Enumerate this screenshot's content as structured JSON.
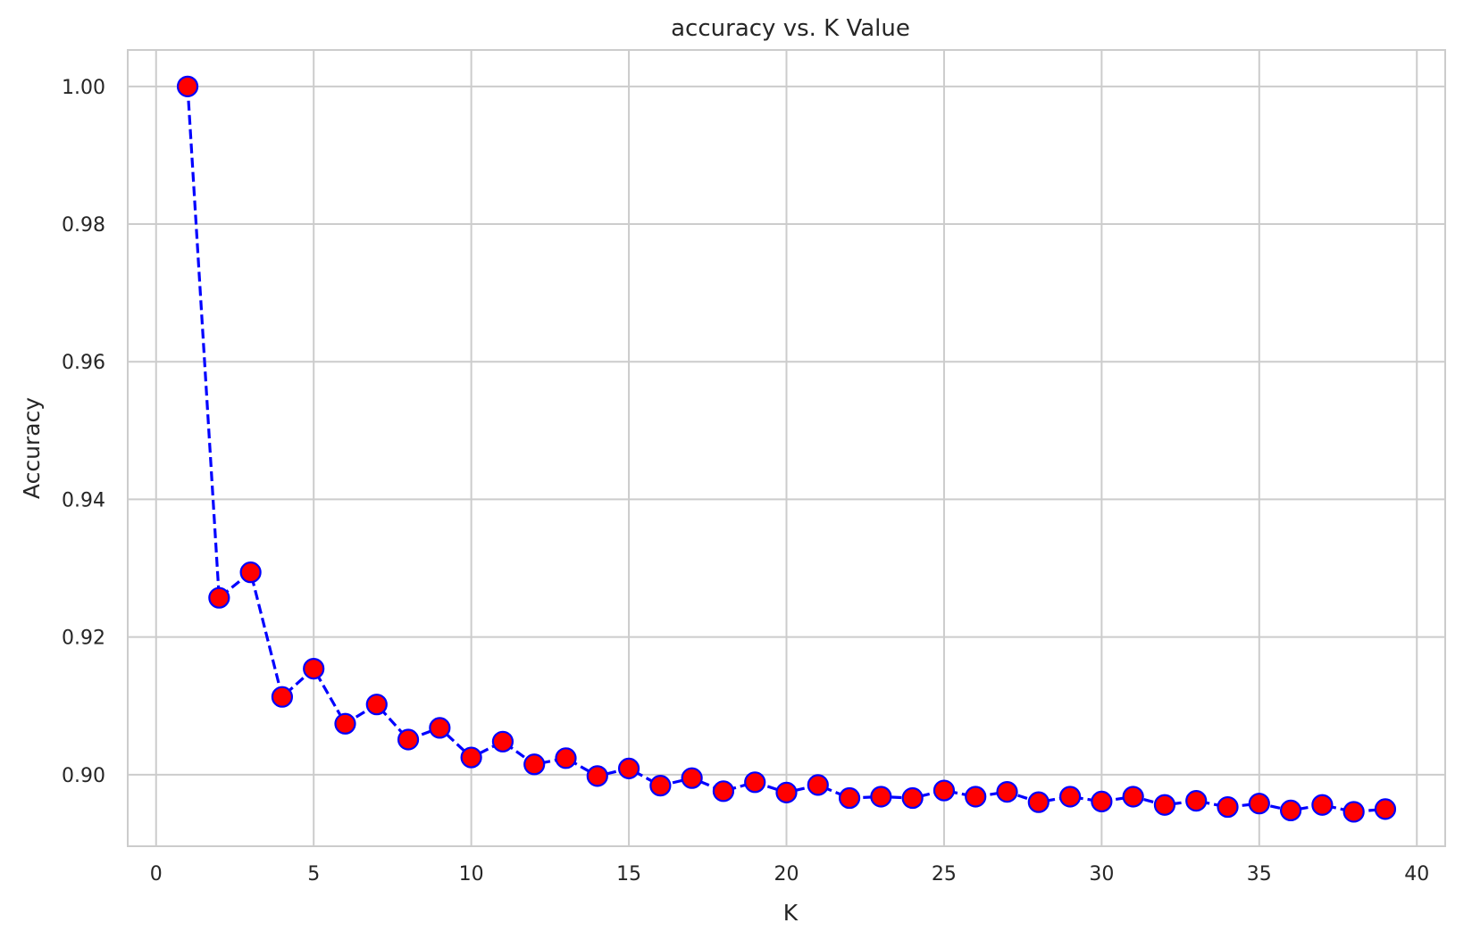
{
  "chart_data": {
    "type": "line",
    "title": "accuracy vs. K Value",
    "xlabel": "K",
    "ylabel": "Accuracy",
    "xlim": [
      -0.9,
      40.9
    ],
    "ylim": [
      0.8896,
      1.0053
    ],
    "xticks": [
      0,
      5,
      10,
      15,
      20,
      25,
      30,
      35,
      40
    ],
    "xtick_labels": [
      "0",
      "5",
      "10",
      "15",
      "20",
      "25",
      "30",
      "35",
      "40"
    ],
    "yticks": [
      0.9,
      0.92,
      0.94,
      0.96,
      0.98,
      1.0
    ],
    "ytick_labels": [
      "0.90",
      "0.92",
      "0.94",
      "0.96",
      "0.98",
      "1.00"
    ],
    "grid": true,
    "line_style": "dashed",
    "line_color": "#0000ff",
    "marker": "circle",
    "marker_face_color": "#ff0000",
    "marker_edge_color": "#0000ff",
    "series": [
      {
        "x": [
          1,
          2,
          3,
          4,
          5,
          6,
          7,
          8,
          9,
          10,
          11,
          12,
          13,
          14,
          15,
          16,
          17,
          18,
          19,
          20,
          21,
          22,
          23,
          24,
          25,
          26,
          27,
          28,
          29,
          30,
          31,
          32,
          33,
          34,
          35,
          36,
          37,
          38,
          39
        ],
        "values": [
          1.0,
          0.9257,
          0.9294,
          0.9113,
          0.9154,
          0.9074,
          0.9102,
          0.9051,
          0.9068,
          0.9025,
          0.9048,
          0.9015,
          0.9024,
          0.8998,
          0.9009,
          0.8984,
          0.8995,
          0.8976,
          0.8989,
          0.8974,
          0.8985,
          0.8966,
          0.8968,
          0.8966,
          0.8977,
          0.8968,
          0.8975,
          0.896,
          0.8968,
          0.8961,
          0.8968,
          0.8956,
          0.8962,
          0.8953,
          0.8958,
          0.8948,
          0.8956,
          0.8946,
          0.895
        ]
      }
    ]
  }
}
